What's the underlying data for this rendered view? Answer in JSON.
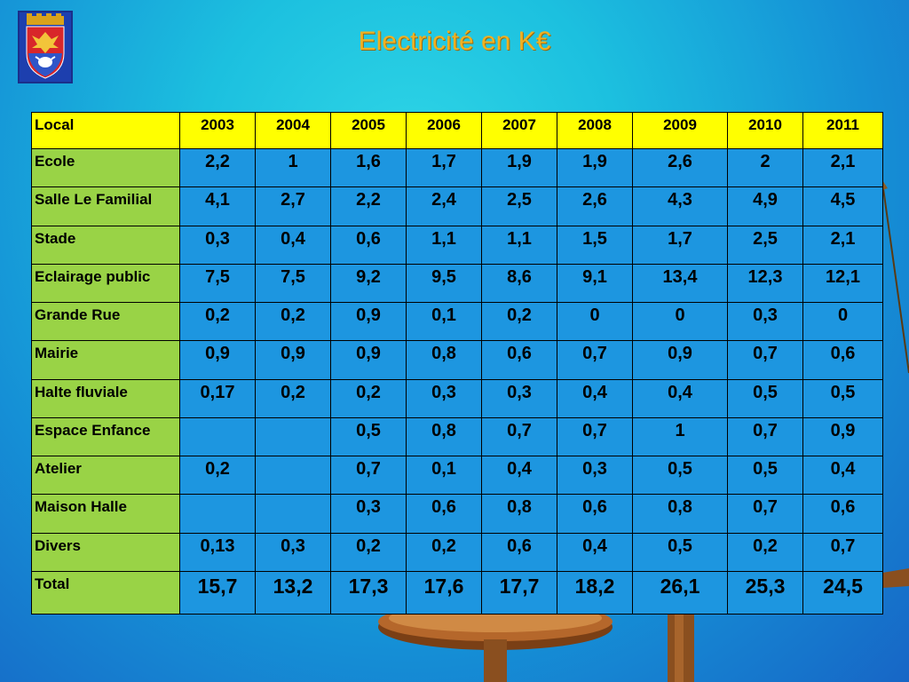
{
  "slide": {
    "title": "Electricité en K€",
    "logo": "city-coat-of-arms"
  },
  "table": {
    "columns": [
      "Local",
      "2003",
      "2004",
      "2005",
      "2006",
      "2007",
      "2008",
      "2009",
      "2010",
      "2011"
    ],
    "rows": [
      {
        "label": "Ecole",
        "values": [
          "2,2",
          "1",
          "1,6",
          "1,7",
          "1,9",
          "1,9",
          "2,6",
          "2",
          "2,1"
        ]
      },
      {
        "label": "Salle Le Familial",
        "values": [
          "4,1",
          "2,7",
          "2,2",
          "2,4",
          "2,5",
          "2,6",
          "4,3",
          "4,9",
          "4,5"
        ]
      },
      {
        "label": "Stade",
        "values": [
          "0,3",
          "0,4",
          "0,6",
          "1,1",
          "1,1",
          "1,5",
          "1,7",
          "2,5",
          "2,1"
        ]
      },
      {
        "label": "Eclairage public",
        "values": [
          "7,5",
          "7,5",
          "9,2",
          "9,5",
          "8,6",
          "9,1",
          "13,4",
          "12,3",
          "12,1"
        ]
      },
      {
        "label": "Grande Rue",
        "values": [
          "0,2",
          "0,2",
          "0,9",
          "0,1",
          "0,2",
          "0",
          "0",
          "0,3",
          "0"
        ]
      },
      {
        "label": "Mairie",
        "values": [
          "0,9",
          "0,9",
          "0,9",
          "0,8",
          "0,6",
          "0,7",
          "0,9",
          "0,7",
          "0,6"
        ]
      },
      {
        "label": "Halte fluviale",
        "values": [
          "0,17",
          "0,2",
          "0,2",
          "0,3",
          "0,3",
          "0,4",
          "0,4",
          "0,5",
          "0,5"
        ]
      },
      {
        "label": "Espace Enfance",
        "values": [
          "",
          "",
          "0,5",
          "0,8",
          "0,7",
          "0,7",
          "1",
          "0,7",
          "0,9"
        ]
      },
      {
        "label": "Atelier",
        "values": [
          "0,2",
          "",
          "0,7",
          "0,1",
          "0,4",
          "0,3",
          "0,5",
          "0,5",
          "0,4"
        ]
      },
      {
        "label": "Maison Halle",
        "values": [
          "",
          "",
          "0,3",
          "0,6",
          "0,8",
          "0,6",
          "0,8",
          "0,7",
          "0,6"
        ]
      },
      {
        "label": "Divers",
        "values": [
          "0,13",
          "0,3",
          "0,2",
          "0,2",
          "0,6",
          "0,4",
          "0,5",
          "0,2",
          "0,7"
        ]
      },
      {
        "label": "Total",
        "values": [
          "15,7",
          "13,2",
          "17,3",
          "17,6",
          "17,7",
          "18,2",
          "26,1",
          "25,3",
          "24,5"
        ]
      }
    ]
  },
  "colors": {
    "header_bg": "#ffff00",
    "label_bg": "#99d346",
    "cell_bg": "#1d96e0",
    "title_color": "#f0b021"
  }
}
